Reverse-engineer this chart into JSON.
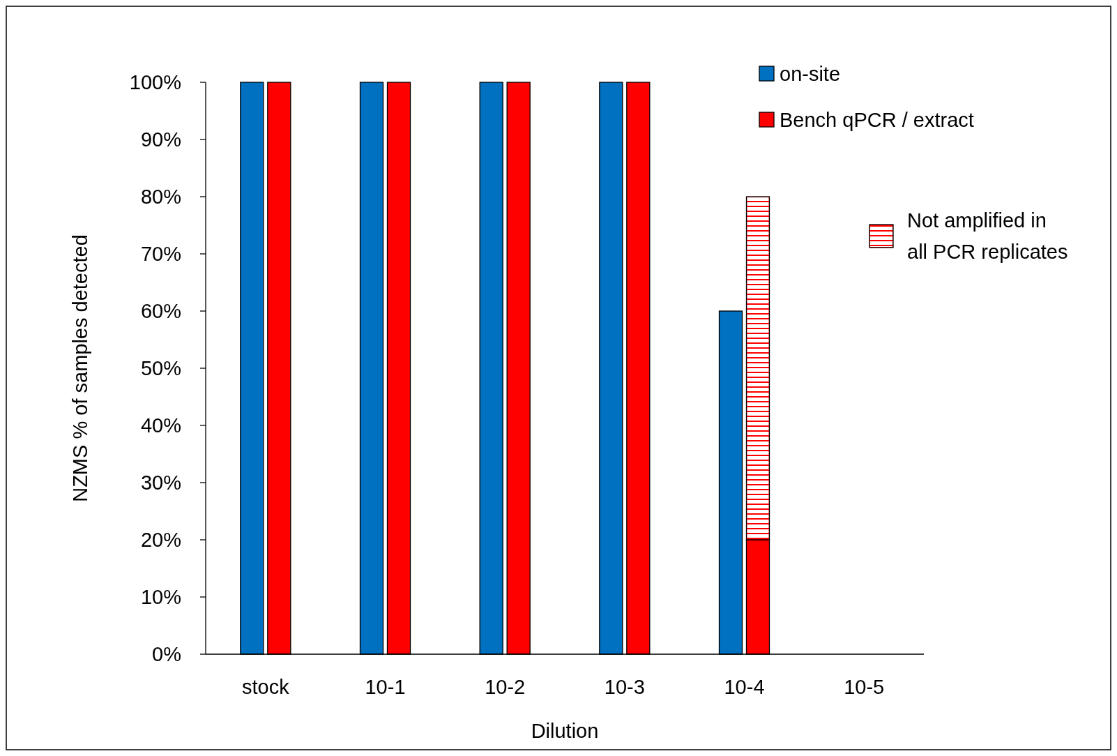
{
  "chart_data": {
    "type": "bar",
    "xlabel": "Dilution",
    "ylabel": "NZMS % of samples detected",
    "categories": [
      "stock",
      "10-1",
      "10-2",
      "10-3",
      "10-4",
      "10-5"
    ],
    "series": [
      {
        "name": "on-site",
        "color": "#0070c0",
        "values": [
          100,
          100,
          100,
          100,
          60,
          0
        ]
      },
      {
        "name": "Bench qPCR / extract",
        "color": "#ff0000",
        "values": [
          100,
          100,
          100,
          100,
          20,
          0
        ]
      },
      {
        "name": "Not amplified in all PCR replicates",
        "color": "#ff0000",
        "values": [
          null,
          null,
          null,
          null,
          60,
          null
        ],
        "base": [
          null,
          null,
          null,
          null,
          20,
          null
        ]
      }
    ],
    "ylim": [
      0,
      100
    ],
    "yticks": [
      {
        "value": 0,
        "label": "0%"
      },
      {
        "value": 10,
        "label": "10%"
      },
      {
        "value": 20,
        "label": "20%"
      },
      {
        "value": 30,
        "label": "30%"
      },
      {
        "value": 40,
        "label": "40%"
      },
      {
        "value": 50,
        "label": "50%"
      },
      {
        "value": 60,
        "label": "60%"
      },
      {
        "value": 70,
        "label": "70%"
      },
      {
        "value": 80,
        "label": "80%"
      },
      {
        "value": 90,
        "label": "90%"
      },
      {
        "value": 100,
        "label": "100%"
      }
    ],
    "grid": false,
    "legend": "top right"
  }
}
